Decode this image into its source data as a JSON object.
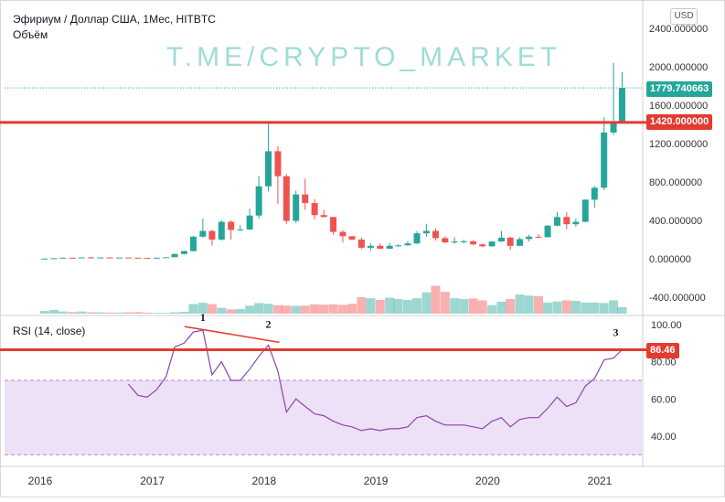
{
  "header": {
    "symbol_title": "Эфириум / Доллар США, 1Мес, HITBTC",
    "volume_label": "Объём",
    "currency_button": "USD",
    "watermark": "T.ME/CRYPTO_MARKET"
  },
  "rsi": {
    "title": "RSI (14, close)",
    "current_value": "86.46",
    "annotations": [
      "1",
      "2",
      "3"
    ]
  },
  "colors": {
    "up": "#26a69a",
    "down": "#ef5350",
    "hline": "#e23b30",
    "rsi_line": "#8e44ad",
    "rsi_band": "#ece1f7",
    "price_tag": "#26a69a"
  },
  "chart_data": [
    {
      "type": "candlestick",
      "title": "Эфириум / Доллар США, 1Мес, HITBTC",
      "ylim": [
        -550,
        2550
      ],
      "y_ticks": [
        "2400.000000",
        "2000.000000",
        "1600.000000",
        "1200.000000",
        "800.000000",
        "400.000000",
        "0.000000",
        "-400.000000"
      ],
      "y_tick_values": [
        2400,
        2000,
        1600,
        1200,
        800,
        400,
        0,
        -400
      ],
      "x_ticks": [
        "2016",
        "2017",
        "2018",
        "2019",
        "2020",
        "2021"
      ],
      "current_price": "1779.740663",
      "current_price_value": 1779.74,
      "horizontal_line": "1420.000000",
      "horizontal_line_value": 1420,
      "candles": [
        {
          "d": "2016-01",
          "o": 1,
          "h": 3,
          "l": 1,
          "c": 2
        },
        {
          "d": "2016-02",
          "o": 2,
          "h": 6,
          "l": 2,
          "c": 6
        },
        {
          "d": "2016-03",
          "o": 6,
          "h": 15,
          "l": 5,
          "c": 11
        },
        {
          "d": "2016-04",
          "o": 11,
          "h": 12,
          "l": 7,
          "c": 9
        },
        {
          "d": "2016-05",
          "o": 9,
          "h": 15,
          "l": 8,
          "c": 14
        },
        {
          "d": "2016-06",
          "o": 14,
          "h": 21,
          "l": 11,
          "c": 12
        },
        {
          "d": "2016-07",
          "o": 12,
          "h": 15,
          "l": 10,
          "c": 13
        },
        {
          "d": "2016-08",
          "o": 13,
          "h": 14,
          "l": 10,
          "c": 12
        },
        {
          "d": "2016-09",
          "o": 12,
          "h": 14,
          "l": 11,
          "c": 13
        },
        {
          "d": "2016-10",
          "o": 13,
          "h": 13,
          "l": 10,
          "c": 11
        },
        {
          "d": "2016-11",
          "o": 11,
          "h": 11,
          "l": 8,
          "c": 9
        },
        {
          "d": "2016-12",
          "o": 9,
          "h": 9,
          "l": 7,
          "c": 8
        },
        {
          "d": "2017-01",
          "o": 8,
          "h": 11,
          "l": 8,
          "c": 11
        },
        {
          "d": "2017-02",
          "o": 11,
          "h": 17,
          "l": 10,
          "c": 16
        },
        {
          "d": "2017-03",
          "o": 16,
          "h": 55,
          "l": 16,
          "c": 50
        },
        {
          "d": "2017-04",
          "o": 50,
          "h": 85,
          "l": 45,
          "c": 80
        },
        {
          "d": "2017-05",
          "o": 80,
          "h": 240,
          "l": 78,
          "c": 230
        },
        {
          "d": "2017-06",
          "o": 230,
          "h": 420,
          "l": 220,
          "c": 290
        },
        {
          "d": "2017-07",
          "o": 290,
          "h": 300,
          "l": 140,
          "c": 200
        },
        {
          "d": "2017-08",
          "o": 200,
          "h": 400,
          "l": 190,
          "c": 385
        },
        {
          "d": "2017-09",
          "o": 385,
          "h": 400,
          "l": 200,
          "c": 300
        },
        {
          "d": "2017-10",
          "o": 300,
          "h": 350,
          "l": 290,
          "c": 305
        },
        {
          "d": "2017-11",
          "o": 305,
          "h": 520,
          "l": 300,
          "c": 450
        },
        {
          "d": "2017-12",
          "o": 450,
          "h": 860,
          "l": 420,
          "c": 755
        },
        {
          "d": "2018-01",
          "o": 755,
          "h": 1420,
          "l": 700,
          "c": 1120
        },
        {
          "d": "2018-02",
          "o": 1120,
          "h": 1170,
          "l": 570,
          "c": 860
        },
        {
          "d": "2018-03",
          "o": 860,
          "h": 880,
          "l": 365,
          "c": 395
        },
        {
          "d": "2018-04",
          "o": 395,
          "h": 710,
          "l": 370,
          "c": 670
        },
        {
          "d": "2018-05",
          "o": 670,
          "h": 835,
          "l": 510,
          "c": 580
        },
        {
          "d": "2018-06",
          "o": 580,
          "h": 620,
          "l": 410,
          "c": 455
        },
        {
          "d": "2018-07",
          "o": 455,
          "h": 510,
          "l": 430,
          "c": 435
        },
        {
          "d": "2018-08",
          "o": 435,
          "h": 435,
          "l": 250,
          "c": 280
        },
        {
          "d": "2018-09",
          "o": 280,
          "h": 300,
          "l": 170,
          "c": 235
        },
        {
          "d": "2018-10",
          "o": 235,
          "h": 235,
          "l": 190,
          "c": 200
        },
        {
          "d": "2018-11",
          "o": 200,
          "h": 220,
          "l": 100,
          "c": 115
        },
        {
          "d": "2018-12",
          "o": 115,
          "h": 160,
          "l": 85,
          "c": 135
        },
        {
          "d": "2019-01",
          "o": 135,
          "h": 160,
          "l": 100,
          "c": 105
        },
        {
          "d": "2019-02",
          "o": 105,
          "h": 165,
          "l": 100,
          "c": 135
        },
        {
          "d": "2019-03",
          "o": 135,
          "h": 150,
          "l": 125,
          "c": 140
        },
        {
          "d": "2019-04",
          "o": 140,
          "h": 185,
          "l": 135,
          "c": 160
        },
        {
          "d": "2019-05",
          "o": 160,
          "h": 290,
          "l": 155,
          "c": 265
        },
        {
          "d": "2019-06",
          "o": 265,
          "h": 365,
          "l": 230,
          "c": 290
        },
        {
          "d": "2019-07",
          "o": 290,
          "h": 315,
          "l": 190,
          "c": 215
        },
        {
          "d": "2019-08",
          "o": 215,
          "h": 235,
          "l": 165,
          "c": 170
        },
        {
          "d": "2019-09",
          "o": 170,
          "h": 225,
          "l": 155,
          "c": 180
        },
        {
          "d": "2019-10",
          "o": 180,
          "h": 200,
          "l": 160,
          "c": 182
        },
        {
          "d": "2019-11",
          "o": 182,
          "h": 195,
          "l": 140,
          "c": 150
        },
        {
          "d": "2019-12",
          "o": 150,
          "h": 155,
          "l": 120,
          "c": 130
        },
        {
          "d": "2020-01",
          "o": 130,
          "h": 185,
          "l": 125,
          "c": 180
        },
        {
          "d": "2020-02",
          "o": 180,
          "h": 290,
          "l": 175,
          "c": 220
        },
        {
          "d": "2020-03",
          "o": 220,
          "h": 230,
          "l": 90,
          "c": 135
        },
        {
          "d": "2020-04",
          "o": 135,
          "h": 225,
          "l": 130,
          "c": 205
        },
        {
          "d": "2020-05",
          "o": 205,
          "h": 250,
          "l": 180,
          "c": 230
        },
        {
          "d": "2020-06",
          "o": 230,
          "h": 255,
          "l": 215,
          "c": 225
        },
        {
          "d": "2020-07",
          "o": 225,
          "h": 350,
          "l": 220,
          "c": 345
        },
        {
          "d": "2020-08",
          "o": 345,
          "h": 490,
          "l": 340,
          "c": 435
        },
        {
          "d": "2020-09",
          "o": 435,
          "h": 485,
          "l": 310,
          "c": 360
        },
        {
          "d": "2020-10",
          "o": 360,
          "h": 420,
          "l": 335,
          "c": 385
        },
        {
          "d": "2020-11",
          "o": 385,
          "h": 620,
          "l": 380,
          "c": 615
        },
        {
          "d": "2020-12",
          "o": 615,
          "h": 760,
          "l": 530,
          "c": 740
        },
        {
          "d": "2021-01",
          "o": 740,
          "h": 1475,
          "l": 715,
          "c": 1315
        },
        {
          "d": "2021-02",
          "o": 1315,
          "h": 2040,
          "l": 1290,
          "c": 1420
        },
        {
          "d": "2021-03",
          "o": 1420,
          "h": 1945,
          "l": 1420,
          "c": 1780
        }
      ]
    },
    {
      "type": "bar",
      "title": "Объём",
      "x": [
        "2016-01",
        "2016-02",
        "2016-03",
        "2016-04",
        "2016-05",
        "2016-06",
        "2016-07",
        "2016-08",
        "2016-09",
        "2016-10",
        "2016-11",
        "2016-12",
        "2017-01",
        "2017-02",
        "2017-03",
        "2017-04",
        "2017-05",
        "2017-06",
        "2017-07",
        "2017-08",
        "2017-09",
        "2017-10",
        "2017-11",
        "2017-12",
        "2018-01",
        "2018-02",
        "2018-03",
        "2018-04",
        "2018-05",
        "2018-06",
        "2018-07",
        "2018-08",
        "2018-09",
        "2018-10",
        "2018-11",
        "2018-12",
        "2019-01",
        "2019-02",
        "2019-03",
        "2019-04",
        "2019-05",
        "2019-06",
        "2019-07",
        "2019-08",
        "2019-09",
        "2019-10",
        "2019-11",
        "2019-12",
        "2020-01",
        "2020-02",
        "2020-03",
        "2020-04",
        "2020-05",
        "2020-06",
        "2020-07",
        "2020-08",
        "2020-09",
        "2020-10",
        "2020-11",
        "2020-12",
        "2021-01",
        "2021-02",
        "2021-03"
      ],
      "values": [
        10,
        14,
        8,
        6,
        8,
        5,
        5,
        4,
        4,
        5,
        6,
        4,
        3,
        3,
        5,
        7,
        36,
        41,
        36,
        22,
        16,
        17,
        30,
        40,
        37,
        32,
        30,
        29,
        30,
        35,
        34,
        35,
        33,
        37,
        62,
        58,
        52,
        60,
        55,
        52,
        58,
        80,
        105,
        82,
        58,
        55,
        57,
        50,
        32,
        45,
        55,
        72,
        68,
        66,
        42,
        46,
        50,
        48,
        42,
        42,
        40,
        50,
        25
      ],
      "directions": [
        "up",
        "up",
        "up",
        "down",
        "up",
        "down",
        "up",
        "down",
        "up",
        "down",
        "down",
        "down",
        "up",
        "up",
        "up",
        "up",
        "up",
        "up",
        "down",
        "up",
        "down",
        "up",
        "up",
        "up",
        "up",
        "down",
        "down",
        "up",
        "down",
        "down",
        "down",
        "down",
        "down",
        "down",
        "down",
        "up",
        "down",
        "up",
        "up",
        "up",
        "up",
        "up",
        "down",
        "down",
        "up",
        "up",
        "down",
        "down",
        "up",
        "up",
        "down",
        "up",
        "up",
        "down",
        "up",
        "up",
        "down",
        "up",
        "up",
        "up",
        "up",
        "up",
        "up"
      ]
    },
    {
      "type": "line",
      "title": "RSI (14, close)",
      "ylim": [
        23,
        102
      ],
      "y_ticks": [
        "100.00",
        "80.00",
        "60.00",
        "40.00"
      ],
      "y_tick_values": [
        100,
        80,
        60,
        40
      ],
      "bands": [
        30,
        70
      ],
      "horizontal_line_value": 86.46,
      "x": [
        "2016-10",
        "2016-11",
        "2016-12",
        "2017-01",
        "2017-02",
        "2017-03",
        "2017-04",
        "2017-05",
        "2017-06",
        "2017-07",
        "2017-08",
        "2017-09",
        "2017-10",
        "2017-11",
        "2017-12",
        "2018-01",
        "2018-02",
        "2018-03",
        "2018-04",
        "2018-05",
        "2018-06",
        "2018-07",
        "2018-08",
        "2018-09",
        "2018-10",
        "2018-11",
        "2018-12",
        "2019-01",
        "2019-02",
        "2019-03",
        "2019-04",
        "2019-05",
        "2019-06",
        "2019-07",
        "2019-08",
        "2019-09",
        "2019-10",
        "2019-11",
        "2019-12",
        "2020-01",
        "2020-02",
        "2020-03",
        "2020-04",
        "2020-05",
        "2020-06",
        "2020-07",
        "2020-08",
        "2020-09",
        "2020-10",
        "2020-11",
        "2020-12",
        "2021-01",
        "2021-02",
        "2021-03"
      ],
      "values": [
        68,
        62,
        61,
        65,
        72,
        88,
        90,
        96,
        97,
        73,
        80,
        70,
        70,
        76,
        83,
        89,
        75,
        53,
        60,
        56,
        52,
        51,
        48,
        46,
        45,
        43,
        44,
        43,
        44,
        44,
        45,
        50,
        51,
        48,
        46,
        46,
        46,
        45,
        44,
        48,
        50,
        45,
        49,
        50,
        50,
        55,
        61,
        56,
        58,
        67,
        71,
        81,
        82,
        86.46
      ],
      "annotations": [
        {
          "label": "1",
          "x": "2017-06",
          "y": 97
        },
        {
          "label": "2",
          "x": "2018-01",
          "y": 89
        },
        {
          "label": "3",
          "x": "2021-03",
          "y": 86.46
        }
      ],
      "trendline": [
        {
          "x": "2017-06",
          "y": 97
        },
        {
          "x": "2018-01",
          "y": 89
        }
      ]
    }
  ]
}
